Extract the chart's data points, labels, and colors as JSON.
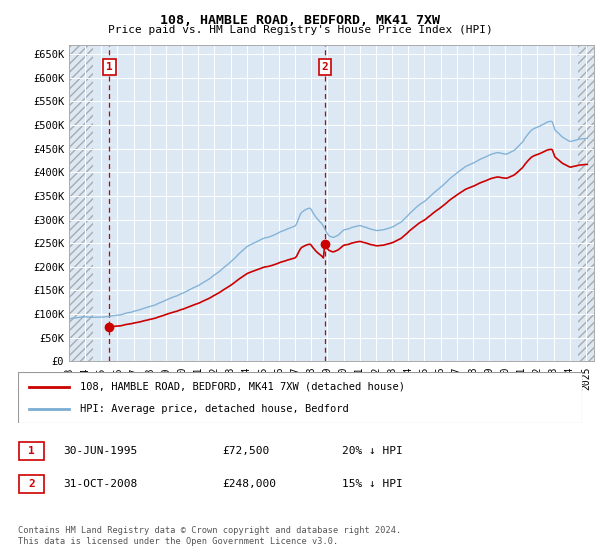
{
  "title": "108, HAMBLE ROAD, BEDFORD, MK41 7XW",
  "subtitle": "Price paid vs. HM Land Registry's House Price Index (HPI)",
  "legend_line1": "108, HAMBLE ROAD, BEDFORD, MK41 7XW (detached house)",
  "legend_line2": "HPI: Average price, detached house, Bedford",
  "annotation1_date": "30-JUN-1995",
  "annotation1_price": "£72,500",
  "annotation1_hpi": "20% ↓ HPI",
  "annotation2_date": "31-OCT-2008",
  "annotation2_price": "£248,000",
  "annotation2_hpi": "15% ↓ HPI",
  "footer": "Contains HM Land Registry data © Crown copyright and database right 2024.\nThis data is licensed under the Open Government Licence v3.0.",
  "ylim": [
    0,
    670000
  ],
  "yticks": [
    0,
    50000,
    100000,
    150000,
    200000,
    250000,
    300000,
    350000,
    400000,
    450000,
    500000,
    550000,
    600000,
    650000
  ],
  "sale1_x": 1995.5,
  "sale1_y": 72500,
  "sale2_x": 2008.83,
  "sale2_y": 248000,
  "vline1_x": 1995.5,
  "vline2_x": 2008.83,
  "price_color": "#cc0000",
  "hpi_color": "#7aadd4",
  "vline_color": "#cc0000",
  "background_color": "#ffffff",
  "plot_bg_color": "#dce9f5",
  "grid_color": "#ffffff",
  "xlim_left": 1993,
  "xlim_right": 2025.5,
  "xticks": [
    1993,
    1994,
    1995,
    1996,
    1997,
    1998,
    1999,
    2000,
    2001,
    2002,
    2003,
    2004,
    2005,
    2006,
    2007,
    2008,
    2009,
    2010,
    2011,
    2012,
    2013,
    2014,
    2015,
    2016,
    2017,
    2018,
    2019,
    2020,
    2021,
    2022,
    2023,
    2024,
    2025
  ]
}
